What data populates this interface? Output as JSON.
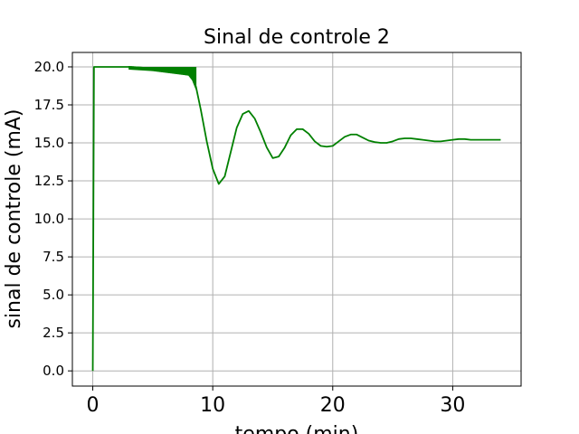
{
  "chart_data": {
    "type": "line",
    "title": "Sinal de controle 2",
    "xlabel": "tempo (min)",
    "ylabel": "sinal de controle (mA)",
    "xlim": [
      -1.7,
      35.7
    ],
    "ylim": [
      -1.0,
      20.95
    ],
    "xticks": [
      0,
      10,
      20,
      30
    ],
    "xtick_labels": [
      "0",
      "10",
      "20",
      "30"
    ],
    "yticks": [
      0.0,
      2.5,
      5.0,
      7.5,
      10.0,
      12.5,
      15.0,
      17.5,
      20.0
    ],
    "ytick_labels": [
      "0.0",
      "2.5",
      "5.0",
      "7.5",
      "10.0",
      "12.5",
      "15.0",
      "17.5",
      "20.0"
    ],
    "grid": true,
    "legend": "none",
    "colors": {
      "series": "#008000",
      "grid": "#b0b0b0",
      "axes": "#000000"
    },
    "series": [
      {
        "x": [
          0,
          0.05,
          0.1,
          0.2,
          1,
          2,
          3,
          4,
          5,
          6,
          7,
          8,
          8.3,
          8.6,
          9,
          9.5,
          10,
          10.5,
          11,
          11.5,
          12,
          12.5,
          13,
          13.5,
          14,
          14.5,
          15,
          15.5,
          16,
          16.5,
          17,
          17.5,
          18,
          18.5,
          19,
          19.5,
          20,
          20.5,
          21,
          21.5,
          22,
          22.5,
          23,
          23.5,
          24,
          24.5,
          25,
          25.5,
          26,
          26.5,
          27,
          27.5,
          28,
          28.5,
          29,
          29.5,
          30,
          30.5,
          31,
          31.5,
          32,
          32.5,
          33,
          33.5,
          34
        ],
        "y": [
          0.0,
          10.0,
          20.0,
          20.0,
          20.0,
          20.0,
          20.0,
          19.95,
          19.9,
          19.8,
          19.7,
          19.6,
          19.3,
          18.7,
          17.2,
          15.1,
          13.3,
          12.3,
          12.8,
          14.4,
          16.0,
          16.9,
          17.1,
          16.6,
          15.7,
          14.7,
          14.0,
          14.1,
          14.7,
          15.5,
          15.9,
          15.9,
          15.6,
          15.1,
          14.8,
          14.75,
          14.8,
          15.1,
          15.4,
          15.55,
          15.55,
          15.35,
          15.15,
          15.05,
          15.0,
          15.0,
          15.1,
          15.25,
          15.3,
          15.3,
          15.25,
          15.2,
          15.15,
          15.1,
          15.1,
          15.15,
          15.2,
          15.25,
          15.25,
          15.2,
          15.2,
          15.2,
          15.2,
          15.2,
          15.2
        ]
      }
    ]
  }
}
